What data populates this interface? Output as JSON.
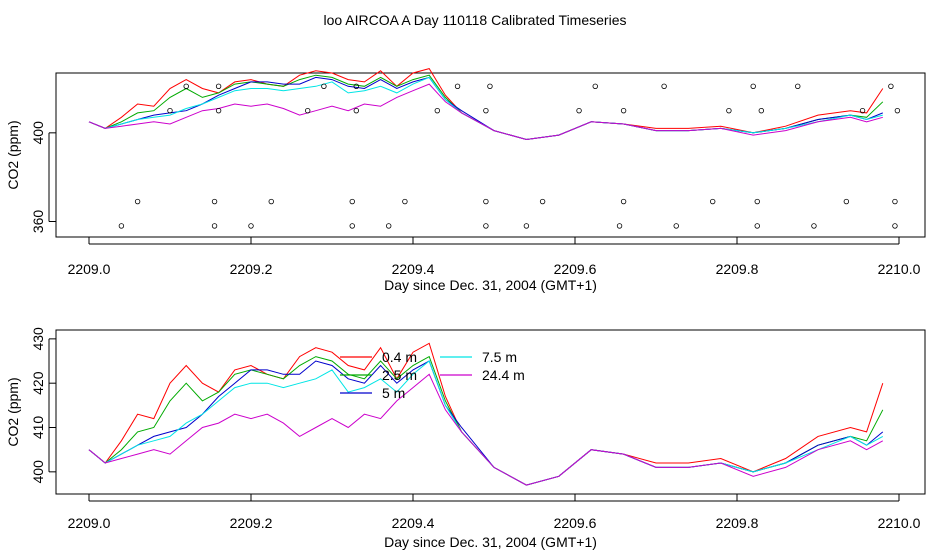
{
  "title": "loo AIRCOA A  Day 110118  Calibrated Timeseries",
  "colors": {
    "0.4 m": "#ff0000",
    "2.5 m": "#00aa00",
    "5 m": "#0000cc",
    "7.5 m": "#00e5e5",
    "24.4 m": "#cc00cc"
  },
  "chart_data": [
    {
      "type": "line",
      "xlabel": "Day since Dec. 31, 2004 (GMT+1)",
      "ylabel": "CO2 (ppm)",
      "xlim": [
        2209.0,
        2210.0
      ],
      "ylim": [
        353,
        427
      ],
      "xticks": [
        "2209.0",
        "2209.2",
        "2209.4",
        "2209.6",
        "2209.8",
        "2210.0"
      ],
      "yticks": [
        "360",
        "400"
      ],
      "ytick_values": [
        360,
        400
      ],
      "series": [
        {
          "name": "0.4 m",
          "x": [
            2209.0,
            2209.02,
            2209.04,
            2209.06,
            2209.08,
            2209.1,
            2209.12,
            2209.14,
            2209.16,
            2209.18,
            2209.2,
            2209.22,
            2209.24,
            2209.26,
            2209.28,
            2209.3,
            2209.32,
            2209.34,
            2209.36,
            2209.38,
            2209.4,
            2209.42,
            2209.44,
            2209.46,
            2209.5,
            2209.54,
            2209.58,
            2209.62,
            2209.66,
            2209.7,
            2209.74,
            2209.78,
            2209.82,
            2209.86,
            2209.9,
            2209.94,
            2209.96,
            2209.98
          ],
          "y": [
            405,
            402,
            407,
            413,
            412,
            420,
            424,
            420,
            418,
            423,
            424,
            422,
            421,
            426,
            428,
            427,
            424,
            423,
            428,
            421,
            427,
            429,
            417,
            409,
            401,
            397,
            399,
            405,
            404,
            402,
            402,
            403,
            400,
            403,
            408,
            410,
            409,
            420
          ]
        },
        {
          "name": "2.5 m",
          "x": [
            2209.0,
            2209.02,
            2209.04,
            2209.06,
            2209.08,
            2209.1,
            2209.12,
            2209.14,
            2209.16,
            2209.18,
            2209.2,
            2209.22,
            2209.24,
            2209.26,
            2209.28,
            2209.3,
            2209.32,
            2209.34,
            2209.36,
            2209.38,
            2209.4,
            2209.42,
            2209.44,
            2209.46,
            2209.5,
            2209.54,
            2209.58,
            2209.62,
            2209.66,
            2209.7,
            2209.74,
            2209.78,
            2209.82,
            2209.86,
            2209.9,
            2209.94,
            2209.96,
            2209.98
          ],
          "y": [
            405,
            402,
            405,
            409,
            410,
            416,
            420,
            416,
            418,
            422,
            423,
            422,
            421,
            424,
            426,
            425,
            422,
            421,
            425,
            421,
            424,
            426,
            416,
            409,
            401,
            397,
            399,
            405,
            404,
            401,
            401,
            402,
            400,
            402,
            406,
            408,
            407,
            414
          ]
        },
        {
          "name": "5 m",
          "x": [
            2209.0,
            2209.02,
            2209.04,
            2209.06,
            2209.08,
            2209.1,
            2209.12,
            2209.14,
            2209.16,
            2209.18,
            2209.2,
            2209.22,
            2209.24,
            2209.26,
            2209.28,
            2209.3,
            2209.32,
            2209.34,
            2209.36,
            2209.38,
            2209.4,
            2209.42,
            2209.44,
            2209.46,
            2209.5,
            2209.54,
            2209.58,
            2209.62,
            2209.66,
            2209.7,
            2209.74,
            2209.78,
            2209.82,
            2209.86,
            2209.9,
            2209.94,
            2209.96,
            2209.98
          ],
          "y": [
            405,
            402,
            404,
            406,
            408,
            409,
            410,
            413,
            417,
            420,
            423,
            423,
            422,
            422,
            425,
            424,
            421,
            420,
            424,
            420,
            423,
            425,
            415,
            410,
            401,
            397,
            399,
            405,
            404,
            401,
            401,
            402,
            400,
            402,
            406,
            408,
            406,
            409
          ]
        },
        {
          "name": "7.5 m",
          "x": [
            2209.0,
            2209.02,
            2209.04,
            2209.06,
            2209.08,
            2209.1,
            2209.12,
            2209.14,
            2209.16,
            2209.18,
            2209.2,
            2209.22,
            2209.24,
            2209.26,
            2209.28,
            2209.3,
            2209.32,
            2209.34,
            2209.36,
            2209.38,
            2209.4,
            2209.42,
            2209.44,
            2209.46,
            2209.5,
            2209.54,
            2209.58,
            2209.62,
            2209.66,
            2209.7,
            2209.74,
            2209.78,
            2209.82,
            2209.86,
            2209.9,
            2209.94,
            2209.96,
            2209.98
          ],
          "y": [
            405,
            402,
            404,
            406,
            407,
            408,
            411,
            413,
            416,
            419,
            420,
            420,
            419,
            420,
            421,
            423,
            418,
            419,
            421,
            418,
            422,
            425,
            415,
            409,
            401,
            397,
            399,
            405,
            404,
            401,
            401,
            402,
            400,
            402,
            405,
            408,
            406,
            408
          ]
        },
        {
          "name": "24.4 m",
          "x": [
            2209.0,
            2209.02,
            2209.04,
            2209.06,
            2209.08,
            2209.1,
            2209.12,
            2209.14,
            2209.16,
            2209.18,
            2209.2,
            2209.22,
            2209.24,
            2209.26,
            2209.28,
            2209.3,
            2209.32,
            2209.34,
            2209.36,
            2209.38,
            2209.4,
            2209.42,
            2209.44,
            2209.46,
            2209.5,
            2209.54,
            2209.58,
            2209.62,
            2209.66,
            2209.7,
            2209.74,
            2209.78,
            2209.82,
            2209.86,
            2209.9,
            2209.94,
            2209.96,
            2209.98
          ],
          "y": [
            405,
            402,
            403,
            404,
            405,
            404,
            407,
            410,
            411,
            413,
            412,
            413,
            411,
            408,
            410,
            412,
            410,
            413,
            412,
            416,
            419,
            422,
            414,
            409,
            401,
            397,
            399,
            405,
            404,
            401,
            401,
            402,
            399,
            401,
            405,
            407,
            405,
            407
          ]
        }
      ],
      "markers": {
        "x": [
          2209.04,
          2209.06,
          2209.1,
          2209.12,
          2209.155,
          2209.155,
          2209.16,
          2209.16,
          2209.2,
          2209.225,
          2209.27,
          2209.29,
          2209.325,
          2209.325,
          2209.33,
          2209.33,
          2209.37,
          2209.39,
          2209.43,
          2209.455,
          2209.49,
          2209.49,
          2209.49,
          2209.495,
          2209.54,
          2209.56,
          2209.605,
          2209.625,
          2209.655,
          2209.66,
          2209.66,
          2209.71,
          2209.725,
          2209.77,
          2209.79,
          2209.82,
          2209.825,
          2209.825,
          2209.83,
          2209.875,
          2209.895,
          2209.935,
          2209.955,
          2209.99,
          2209.995,
          2209.995,
          2209.998
        ],
        "y": [
          358,
          369,
          410,
          421,
          358,
          369,
          410,
          421,
          358,
          369,
          410,
          421,
          358,
          369,
          410,
          421,
          358,
          369,
          410,
          421,
          358,
          369,
          410,
          421,
          358,
          369,
          410,
          421,
          358,
          369,
          410,
          421,
          358,
          369,
          410,
          421,
          358,
          369,
          410,
          421,
          358,
          369,
          410,
          421,
          358,
          369,
          410
        ]
      }
    },
    {
      "type": "line",
      "xlabel": "Day since Dec. 31, 2004 (GMT+1)",
      "ylabel": "CO2 (ppm)",
      "xlim": [
        2209.0,
        2210.0
      ],
      "ylim": [
        395,
        432
      ],
      "xticks": [
        "2209.0",
        "2209.2",
        "2209.4",
        "2209.6",
        "2209.8",
        "2210.0"
      ],
      "yticks": [
        "400",
        "410",
        "420",
        "430"
      ],
      "ytick_values": [
        400,
        410,
        420,
        430
      ],
      "legend": {
        "placement": "top-center",
        "entries": [
          "0.4 m",
          "2.5 m",
          "5 m",
          "7.5 m",
          "24.4 m"
        ]
      },
      "series": "same as upper panel"
    }
  ]
}
